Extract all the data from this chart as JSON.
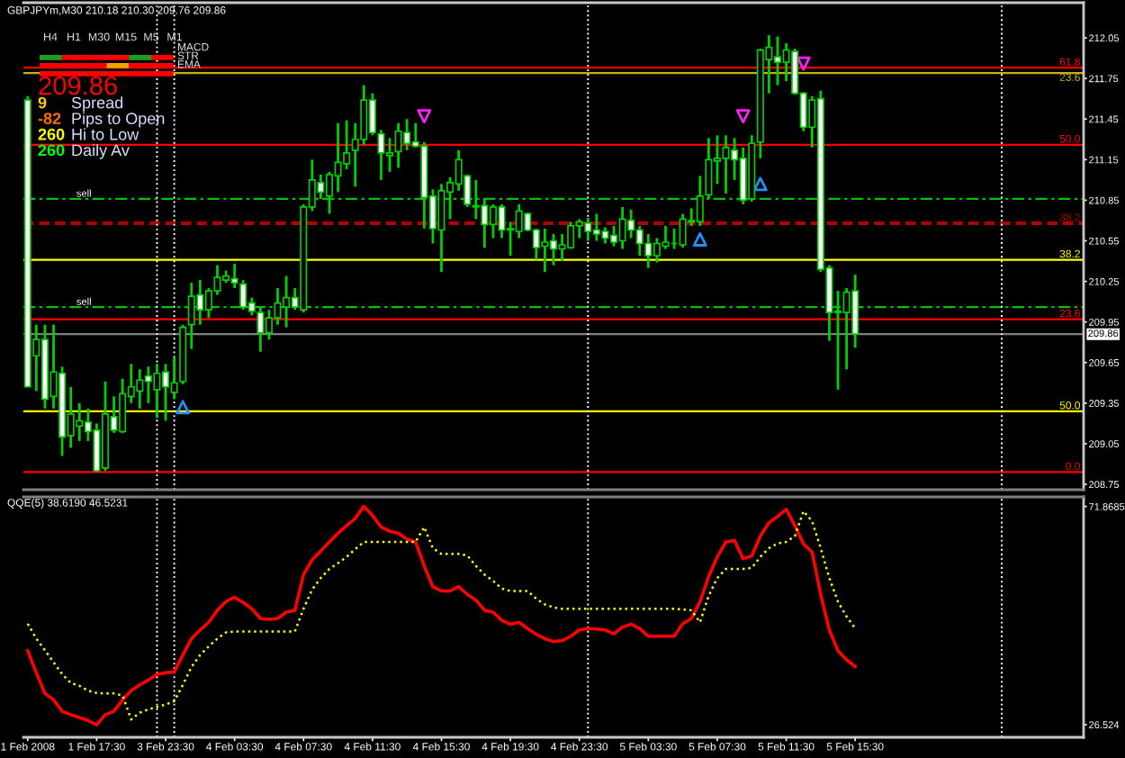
{
  "chart_data": [
    {
      "type": "candlestick",
      "title": "GBPJPYm,M30 210.18 210.30 209.76 209.86",
      "color": "#00d000",
      "grid": "x",
      "categories": [
        null,
        null,
        null,
        null,
        null,
        null,
        null,
        null,
        null,
        null,
        null,
        null,
        null,
        null,
        null,
        null,
        null,
        null,
        null,
        null,
        null,
        null,
        null,
        null,
        null,
        null,
        null,
        null,
        null,
        null,
        null,
        null,
        null,
        null,
        null,
        null,
        null,
        null,
        null,
        null,
        null,
        null,
        null,
        null,
        null,
        null,
        null,
        null,
        null,
        null,
        null,
        null,
        null,
        null,
        null,
        null,
        null,
        null,
        null,
        null,
        null,
        null,
        null,
        null,
        null,
        null,
        null,
        null,
        null,
        null,
        null,
        null,
        null,
        null,
        null,
        null,
        null,
        null,
        null,
        null,
        null,
        null,
        null,
        null,
        null,
        null,
        null,
        null,
        null,
        null,
        null,
        null,
        null,
        null,
        null,
        null,
        null,
        null,
        null,
        null,
        null,
        null,
        null,
        null,
        null,
        null,
        null,
        null,
        null,
        null,
        null,
        null,
        null,
        null,
        null,
        null,
        null,
        null,
        null,
        null,
        null,
        null,
        null
      ],
      "ohlc": [
        [
          211.59,
          211.62,
          209.47,
          209.47
        ],
        [
          209.7,
          209.93,
          209.44,
          209.82
        ],
        [
          209.82,
          209.93,
          209.31,
          209.38
        ],
        [
          209.4,
          209.93,
          209.31,
          209.58
        ],
        [
          209.57,
          209.62,
          208.96,
          209.1
        ],
        [
          209.11,
          209.47,
          209.02,
          209.27
        ],
        [
          209.18,
          209.35,
          209.07,
          209.22
        ],
        [
          209.21,
          209.31,
          209.07,
          209.14
        ],
        [
          209.15,
          209.2,
          208.84,
          208.85
        ],
        [
          208.87,
          209.51,
          208.85,
          209.27
        ],
        [
          209.25,
          209.4,
          209.13,
          209.15
        ],
        [
          209.14,
          209.53,
          209.13,
          209.42
        ],
        [
          209.4,
          209.64,
          209.35,
          209.47
        ],
        [
          209.44,
          209.6,
          209.31,
          209.52
        ],
        [
          209.55,
          209.62,
          209.35,
          209.51
        ],
        [
          209.45,
          209.64,
          209.24,
          209.57
        ],
        [
          209.58,
          209.64,
          209.22,
          209.47
        ],
        [
          209.43,
          209.69,
          209.38,
          209.5
        ],
        [
          209.51,
          209.93,
          209.49,
          209.91
        ],
        [
          209.93,
          210.24,
          209.75,
          210.14
        ],
        [
          210.15,
          210.26,
          209.93,
          210.04
        ],
        [
          210.04,
          210.2,
          209.98,
          210.18
        ],
        [
          210.18,
          210.37,
          210.15,
          210.28
        ],
        [
          210.26,
          210.33,
          210.24,
          210.29
        ],
        [
          210.27,
          210.38,
          210.2,
          210.24
        ],
        [
          210.23,
          210.26,
          210.04,
          210.06
        ],
        [
          210.09,
          210.13,
          210.0,
          210.03
        ],
        [
          210.02,
          210.06,
          209.73,
          209.87
        ],
        [
          209.87,
          210.04,
          209.82,
          209.98
        ],
        [
          209.98,
          210.2,
          209.93,
          210.09
        ],
        [
          210.06,
          210.29,
          209.91,
          210.13
        ],
        [
          210.13,
          210.2,
          210.04,
          210.06
        ],
        [
          210.04,
          210.82,
          210.02,
          210.8
        ],
        [
          210.8,
          211.15,
          210.77,
          211.0
        ],
        [
          210.98,
          211.04,
          210.86,
          210.91
        ],
        [
          210.88,
          211.06,
          210.75,
          211.04
        ],
        [
          211.03,
          211.42,
          210.91,
          211.13
        ],
        [
          211.12,
          211.44,
          211.08,
          211.2
        ],
        [
          211.22,
          211.42,
          210.95,
          211.3
        ],
        [
          211.3,
          211.7,
          211.26,
          211.59
        ],
        [
          211.59,
          211.64,
          211.33,
          211.35
        ],
        [
          211.34,
          211.37,
          211.0,
          211.2
        ],
        [
          211.18,
          211.31,
          211.06,
          211.2
        ],
        [
          211.21,
          211.42,
          211.09,
          211.36
        ],
        [
          211.35,
          211.45,
          211.22,
          211.27
        ],
        [
          211.28,
          211.42,
          211.24,
          211.25
        ],
        [
          211.25,
          211.28,
          210.64,
          210.87
        ],
        [
          210.88,
          210.93,
          210.53,
          210.64
        ],
        [
          210.63,
          210.97,
          210.32,
          210.92
        ],
        [
          210.91,
          211.02,
          210.71,
          210.98
        ],
        [
          210.97,
          211.22,
          210.92,
          211.15
        ],
        [
          211.03,
          211.04,
          210.8,
          210.82
        ],
        [
          210.8,
          211.0,
          210.71,
          210.81
        ],
        [
          210.81,
          210.86,
          210.5,
          210.67
        ],
        [
          210.67,
          210.82,
          210.57,
          210.8
        ],
        [
          210.8,
          210.82,
          210.57,
          210.63
        ],
        [
          210.63,
          210.69,
          210.44,
          210.64
        ],
        [
          210.62,
          210.82,
          210.57,
          210.77
        ],
        [
          210.75,
          210.76,
          210.62,
          210.63
        ],
        [
          210.63,
          210.64,
          210.41,
          210.5
        ],
        [
          210.51,
          210.64,
          210.32,
          210.54
        ],
        [
          210.55,
          210.6,
          210.37,
          210.49
        ],
        [
          210.49,
          210.6,
          210.4,
          210.52
        ],
        [
          210.5,
          210.69,
          210.49,
          210.66
        ],
        [
          210.66,
          210.71,
          210.57,
          210.69
        ],
        [
          210.68,
          210.72,
          210.55,
          210.62
        ],
        [
          210.63,
          210.75,
          210.55,
          210.6
        ],
        [
          210.62,
          210.65,
          210.53,
          210.57
        ],
        [
          210.59,
          210.66,
          210.51,
          210.54
        ],
        [
          210.55,
          210.8,
          210.49,
          210.71
        ],
        [
          210.7,
          210.78,
          210.57,
          210.63
        ],
        [
          210.63,
          210.66,
          210.44,
          210.53
        ],
        [
          210.53,
          210.6,
          210.35,
          210.44
        ],
        [
          210.44,
          210.57,
          210.39,
          210.53
        ],
        [
          210.51,
          210.66,
          210.49,
          210.54
        ],
        [
          210.53,
          210.64,
          210.49,
          210.53
        ],
        [
          210.52,
          210.75,
          210.5,
          210.71
        ],
        [
          210.7,
          210.79,
          210.66,
          210.69
        ],
        [
          210.69,
          211.03,
          210.66,
          210.88
        ],
        [
          210.89,
          211.31,
          210.86,
          211.15
        ],
        [
          211.14,
          211.33,
          210.97,
          211.16
        ],
        [
          211.16,
          211.33,
          210.9,
          211.24
        ],
        [
          211.22,
          211.31,
          211.0,
          211.15
        ],
        [
          211.16,
          211.24,
          210.82,
          210.85
        ],
        [
          210.86,
          211.33,
          210.84,
          211.27
        ],
        [
          211.28,
          211.97,
          211.16,
          211.96
        ],
        [
          211.89,
          212.07,
          211.64,
          211.98
        ],
        [
          211.91,
          212.06,
          211.7,
          211.87
        ],
        [
          211.87,
          212.01,
          211.73,
          211.96
        ],
        [
          211.95,
          211.97,
          211.63,
          211.64
        ],
        [
          211.64,
          211.65,
          211.36,
          211.39
        ],
        [
          211.39,
          211.62,
          211.24,
          211.59
        ],
        [
          211.6,
          211.66,
          210.32,
          210.34
        ],
        [
          210.35,
          210.37,
          209.81,
          210.02
        ],
        [
          210.02,
          210.18,
          209.45,
          210.03
        ],
        [
          210.02,
          210.2,
          209.6,
          210.17
        ],
        [
          210.18,
          210.3,
          209.76,
          209.86
        ],
        null,
        null,
        null,
        null,
        null,
        null,
        null,
        null,
        null,
        null,
        null,
        null,
        null,
        null,
        null,
        null,
        null,
        null,
        null,
        null,
        null,
        null,
        null,
        null,
        null,
        null
      ],
      "colors": [
        "#ffffff",
        "#000000",
        "#ffffff",
        "#000000",
        "#ffffff",
        "#000000",
        "#000000",
        "#ffffff",
        "#ffffff",
        "#000000",
        "#ffffff",
        "#000000",
        "#000000",
        "#000000",
        "#ffffff",
        "#000000",
        "#ffffff",
        "#000000",
        "#000000",
        "#000000",
        "#ffffff",
        "#000000",
        "#000000",
        "#000000",
        "#ffffff",
        "#ffffff",
        "#ffffff",
        "#ffffff",
        "#000000",
        "#000000",
        "#000000",
        "#ffffff",
        "#000000",
        "#000000",
        "#ffffff",
        "#000000",
        "#000000",
        "#000000",
        "#000000",
        "#000000",
        "#ffffff",
        "#ffffff",
        "#000000",
        "#000000",
        "#ffffff",
        "#ffffff",
        "#ffffff",
        "#ffffff",
        "#000000",
        "#000000",
        "#000000",
        "#ffffff",
        "#000000",
        "#ffffff",
        "#000000",
        "#ffffff",
        "#000000",
        "#000000",
        "#ffffff",
        "#ffffff",
        "#000000",
        "#ffffff",
        "#000000",
        "#000000",
        "#000000",
        "#ffffff",
        "#ffffff",
        "#ffffff",
        "#ffffff",
        "#000000",
        "#ffffff",
        "#ffffff",
        "#ffffff",
        "#000000",
        "#000000",
        "#00d000",
        "#000000",
        "#ffffff",
        "#000000",
        "#000000",
        "#000000",
        "#000000",
        "#ffffff",
        "#ffffff",
        "#000000",
        "#000000",
        "#000000",
        "#ffffff",
        "#000000",
        "#ffffff",
        "#ffffff",
        "#000000",
        "#ffffff",
        "#ffffff",
        "#000000",
        "#000000",
        "#ffffff",
        null,
        null,
        null,
        null,
        null,
        null,
        null,
        null,
        null,
        null,
        null,
        null,
        null,
        null,
        null,
        null,
        null,
        null,
        null,
        null,
        null,
        null,
        null,
        null,
        null,
        null
      ],
      "series": [
        {
          "type": "scatter",
          "marker": "triangle",
          "color": "#ff20ff",
          "values": [
            null,
            null,
            null,
            null,
            null,
            null,
            null,
            null,
            null,
            null,
            null,
            null,
            null,
            null,
            null,
            null,
            null,
            null,
            null,
            null,
            null,
            null,
            null,
            null,
            null,
            null,
            null,
            null,
            null,
            null,
            null,
            null,
            null,
            null,
            null,
            null,
            null,
            null,
            null,
            null,
            null,
            null,
            null,
            null,
            null,
            null,
            211.47,
            null,
            null,
            null,
            null,
            null,
            null,
            null,
            null,
            null,
            null,
            null,
            null,
            null,
            null,
            null,
            null,
            null,
            null,
            null,
            null,
            null,
            null,
            null,
            null,
            null,
            null,
            null,
            null,
            null,
            null,
            null,
            null,
            null,
            null,
            null,
            null,
            211.47,
            null,
            null,
            null,
            null,
            null,
            null,
            211.86,
            null,
            null,
            null,
            null,
            null,
            null,
            null,
            null,
            null,
            null,
            null,
            null,
            null,
            null,
            null,
            null,
            null,
            null,
            null,
            null,
            null,
            null,
            null,
            null,
            null,
            null,
            null,
            null,
            null,
            null,
            null,
            null
          ]
        },
        {
          "type": "scatter",
          "marker": "triangle",
          "color": "#2090ff",
          "values": [
            null,
            null,
            null,
            null,
            null,
            null,
            null,
            null,
            null,
            null,
            null,
            null,
            null,
            null,
            null,
            null,
            null,
            null,
            209.32,
            null,
            null,
            null,
            null,
            null,
            null,
            null,
            null,
            null,
            null,
            null,
            null,
            null,
            null,
            null,
            null,
            null,
            null,
            null,
            null,
            null,
            null,
            null,
            null,
            null,
            null,
            null,
            null,
            null,
            null,
            null,
            null,
            null,
            null,
            null,
            null,
            null,
            null,
            null,
            null,
            null,
            null,
            null,
            null,
            null,
            null,
            null,
            null,
            null,
            null,
            null,
            null,
            null,
            null,
            null,
            null,
            null,
            null,
            null,
            210.56,
            null,
            null,
            null,
            null,
            null,
            null,
            210.97,
            null,
            null,
            null,
            null,
            null,
            null,
            null,
            null,
            null,
            null,
            null,
            null,
            null,
            null,
            null,
            null,
            null,
            null,
            null,
            null,
            null,
            null,
            null,
            null,
            null,
            null,
            null,
            null,
            null,
            null,
            null,
            null,
            null,
            null,
            null,
            null,
            null
          ]
        }
      ],
      "ylim": [
        208.71,
        212.31
      ],
      "yticks": [
        212.05,
        211.75,
        211.45,
        211.15,
        210.85,
        210.55,
        210.25,
        209.95,
        209.65,
        209.35,
        209.05,
        208.75
      ],
      "ref_lines": [
        {
          "axis": "y",
          "value": 211.83,
          "color": "#ff0000"
        },
        {
          "axis": "y",
          "value": 211.79,
          "color": "#c8b400"
        },
        {
          "axis": "y",
          "value": 211.26,
          "color": "#ff0000"
        },
        {
          "axis": "y",
          "value": 210.86,
          "label": "sell",
          "color": "#00c000",
          "line_style": "dashdot"
        },
        {
          "axis": "y",
          "value": 210.68,
          "color": "#b00000",
          "line_style": "dashed"
        },
        {
          "axis": "y",
          "value": 210.41,
          "color": "#ffff00"
        },
        {
          "axis": "y",
          "value": 210.06,
          "label": "sell",
          "color": "#00c000",
          "line_style": "dashdot"
        },
        {
          "axis": "y",
          "value": 209.97,
          "color": "#ff0000"
        },
        {
          "axis": "y",
          "value": 209.86,
          "label": "209.86",
          "color": "#808080"
        },
        {
          "axis": "y",
          "value": 209.29,
          "color": "#ffff00"
        },
        {
          "axis": "y",
          "value": 208.84,
          "color": "#ff0000"
        }
      ],
      "annotations": [
        {
          "text": "61.8",
          "y": 211.83
        },
        {
          "text": "23.6",
          "y": 211.79
        },
        {
          "text": "50.0",
          "y": 211.26
        },
        {
          "text": "38.2",
          "y": 210.68
        },
        {
          "text": "38.2",
          "y": 210.41
        },
        {
          "text": "23.6",
          "y": 209.97
        },
        {
          "text": "50.0",
          "y": 209.29
        },
        {
          "text": "0.0",
          "y": 208.84
        }
      ]
    },
    {
      "type": "other",
      "annotations": [
        "H4",
        "H1",
        "M30",
        "M15",
        "M5",
        "M1",
        "MACD",
        "STR",
        "EMA",
        "209.86",
        "9",
        "Spread",
        "-82",
        "Pips to Open",
        "260",
        "Hi to Low",
        "260",
        "Daily Av"
      ]
    },
    {
      "type": "line",
      "title": "QQE(5) 38.6190 46.5231",
      "grid": "x",
      "categories": [
        "1 Feb 2008",
        null,
        null,
        null,
        null,
        null,
        null,
        null,
        "1 Feb 17:30",
        null,
        null,
        null,
        null,
        null,
        null,
        null,
        "3 Feb 23:30",
        null,
        null,
        null,
        null,
        null,
        null,
        null,
        "4 Feb 03:30",
        null,
        null,
        null,
        null,
        null,
        null,
        null,
        "4 Feb 07:30",
        null,
        null,
        null,
        null,
        null,
        null,
        null,
        "4 Feb 11:30",
        null,
        null,
        null,
        null,
        null,
        null,
        null,
        "4 Feb 15:30",
        null,
        null,
        null,
        null,
        null,
        null,
        null,
        "4 Feb 19:30",
        null,
        null,
        null,
        null,
        null,
        null,
        null,
        "4 Feb 23:30",
        null,
        null,
        null,
        null,
        null,
        null,
        null,
        "5 Feb 03:30",
        null,
        null,
        null,
        null,
        null,
        null,
        null,
        "5 Feb 07:30",
        null,
        null,
        null,
        null,
        null,
        null,
        null,
        "5 Feb 11:30",
        null,
        null,
        null,
        null,
        null,
        null,
        null,
        "5 Feb 15:30",
        null,
        null,
        null,
        null,
        null,
        null,
        null,
        null,
        null,
        null,
        null,
        null,
        null,
        null,
        null,
        null,
        null,
        null,
        null,
        null,
        null,
        null,
        null,
        null,
        null,
        null
      ],
      "series": [
        {
          "color": "#ff0000",
          "values": [
            41.9,
            37.3,
            33.0,
            31.7,
            29.3,
            28.6,
            28.0,
            27.4,
            26.5,
            28.6,
            29.3,
            31.7,
            33.6,
            34.8,
            35.8,
            37.0,
            37.3,
            37.5,
            41.0,
            44.4,
            46.2,
            47.8,
            50.3,
            52.1,
            53.0,
            51.9,
            50.6,
            48.6,
            48.4,
            48.6,
            49.9,
            50.3,
            57.7,
            60.8,
            62.6,
            64.5,
            66.3,
            67.9,
            69.4,
            71.9,
            70.0,
            67.6,
            66.7,
            66.3,
            65.1,
            64.5,
            59.5,
            55.2,
            54.3,
            54.3,
            55.2,
            53.6,
            52.4,
            50.3,
            49.9,
            48.2,
            47.4,
            47.8,
            46.5,
            45.3,
            44.4,
            43.8,
            44.0,
            44.9,
            46.2,
            46.5,
            46.4,
            46.2,
            45.4,
            46.8,
            47.4,
            46.5,
            44.9,
            44.9,
            44.9,
            44.9,
            47.5,
            48.6,
            52.1,
            57.3,
            61.4,
            64.5,
            64.8,
            61.0,
            61.6,
            65.7,
            68.5,
            69.8,
            71.3,
            67.9,
            64.1,
            62.4,
            53.6,
            46.2,
            41.9,
            40.0,
            38.6,
            null,
            null,
            null,
            null,
            null,
            null,
            null,
            null,
            null,
            null,
            null,
            null,
            null,
            null,
            null,
            null,
            null,
            null,
            null,
            null,
            null,
            null,
            null,
            null,
            null,
            null
          ]
        },
        {
          "color": "#ffff00",
          "line_style": "dotted",
          "values": [
            47.5,
            44.4,
            42.0,
            39.5,
            37.0,
            35.2,
            34.6,
            33.6,
            33.1,
            33.0,
            33.0,
            32.6,
            27.6,
            29.0,
            29.7,
            30.2,
            30.7,
            31.4,
            34.8,
            38.5,
            41.0,
            42.8,
            44.4,
            45.7,
            45.9,
            45.9,
            45.9,
            45.9,
            45.9,
            45.9,
            45.9,
            45.9,
            50.6,
            54.6,
            57.0,
            58.9,
            60.1,
            61.4,
            63.0,
            64.5,
            64.5,
            64.5,
            64.5,
            64.5,
            64.5,
            64.5,
            67.6,
            63.2,
            62.0,
            62.0,
            62.0,
            61.7,
            59.5,
            57.7,
            56.4,
            54.8,
            54.3,
            54.3,
            54.3,
            52.7,
            51.5,
            50.9,
            50.6,
            50.6,
            50.6,
            50.6,
            50.6,
            50.6,
            50.6,
            50.6,
            50.6,
            50.6,
            50.6,
            50.6,
            50.6,
            50.6,
            50.5,
            50.3,
            47.8,
            53.3,
            57.0,
            58.9,
            58.9,
            58.9,
            59.1,
            61.4,
            63.2,
            64.2,
            64.5,
            65.7,
            70.9,
            68.8,
            63.2,
            57.0,
            52.1,
            49.0,
            46.5,
            null,
            null,
            null,
            null,
            null,
            null,
            null,
            null,
            null,
            null,
            null,
            null,
            null,
            null,
            null,
            null,
            null,
            null,
            null,
            null,
            null,
            null,
            null,
            null,
            null,
            null
          ]
        }
      ],
      "ylim": [
        23.9,
        73.85
      ],
      "yticks": [
        71.8685,
        26.524
      ]
    }
  ]
}
